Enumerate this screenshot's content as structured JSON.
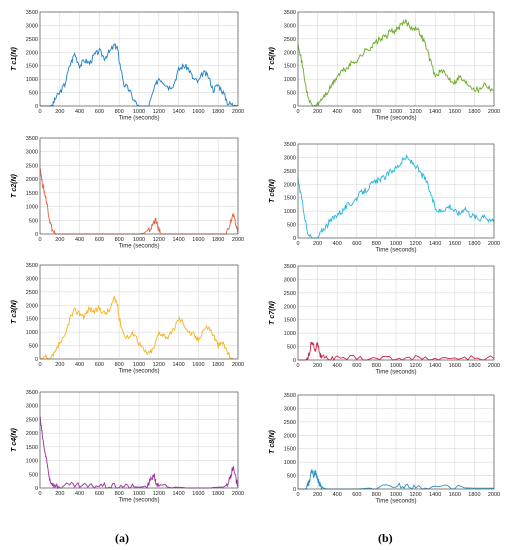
{
  "figure": {
    "panel_labels": [
      "(a)",
      "(b)"
    ]
  },
  "chart_data": [
    {
      "type": "line",
      "ylabel": "T c1(N)",
      "xlabel": "Time (seconds)",
      "xlim": [
        0,
        2000
      ],
      "ylim": [
        0,
        3500
      ],
      "xticks": [
        0,
        200,
        400,
        600,
        800,
        1000,
        1200,
        1400,
        1600,
        1800,
        2000
      ],
      "yticks": [
        0,
        500,
        1000,
        1500,
        2000,
        2500,
        3000,
        3500
      ],
      "grid": true,
      "color": "#1f7fc4",
      "series": [
        {
          "x": [
            0,
            50,
            100,
            130,
            150,
            200,
            250,
            300,
            350,
            400,
            450,
            500,
            550,
            600,
            650,
            700,
            750,
            780,
            800,
            850,
            900,
            950,
            1000,
            1050,
            1100,
            1150,
            1200,
            1250,
            1300,
            1350,
            1400,
            1450,
            1500,
            1550,
            1600,
            1650,
            1700,
            1750,
            1800,
            1850,
            1900,
            1950,
            2000
          ],
          "y": [
            0,
            0,
            0,
            50,
            250,
            500,
            800,
            1500,
            1950,
            1500,
            1700,
            1600,
            1900,
            2050,
            1800,
            2000,
            2250,
            2200,
            1700,
            800,
            600,
            200,
            0,
            0,
            0,
            600,
            1050,
            900,
            700,
            800,
            1350,
            1500,
            1400,
            1000,
            900,
            1250,
            1100,
            600,
            800,
            500,
            100,
            50,
            0
          ]
        }
      ]
    },
    {
      "type": "line",
      "ylabel": "T c2(N)",
      "xlabel": "Time (seconds)",
      "xlim": [
        0,
        2000
      ],
      "ylim": [
        0,
        3500
      ],
      "xticks": [
        0,
        200,
        400,
        600,
        800,
        1000,
        1200,
        1400,
        1600,
        1800,
        2000
      ],
      "yticks": [
        0,
        500,
        1000,
        1500,
        2000,
        2500,
        3000,
        3500
      ],
      "grid": true,
      "color": "#e8623a",
      "series": [
        {
          "x": [
            0,
            20,
            40,
            60,
            80,
            100,
            130,
            160,
            200,
            400,
            600,
            800,
            1000,
            1080,
            1120,
            1150,
            1170,
            1190,
            1220,
            1300,
            1500,
            1700,
            1880,
            1920,
            1950,
            1980,
            2000
          ],
          "y": [
            2500,
            1900,
            1600,
            1300,
            900,
            450,
            100,
            0,
            0,
            0,
            0,
            0,
            0,
            50,
            200,
            450,
            500,
            250,
            0,
            0,
            0,
            0,
            0,
            400,
            700,
            300,
            100
          ]
        }
      ]
    },
    {
      "type": "line",
      "ylabel": "T c3(N)",
      "xlabel": "Time (seconds)",
      "xlim": [
        0,
        2000
      ],
      "ylim": [
        0,
        3500
      ],
      "xticks": [
        0,
        200,
        400,
        600,
        800,
        1000,
        1200,
        1400,
        1600,
        1800,
        2000
      ],
      "yticks": [
        0,
        500,
        1000,
        1500,
        2000,
        2500,
        3000,
        3500
      ],
      "grid": true,
      "color": "#f5b322",
      "series": [
        {
          "x": [
            0,
            50,
            100,
            150,
            200,
            250,
            300,
            350,
            400,
            450,
            500,
            550,
            600,
            650,
            700,
            750,
            780,
            800,
            850,
            900,
            950,
            1000,
            1050,
            1100,
            1150,
            1200,
            1250,
            1300,
            1350,
            1400,
            1450,
            1500,
            1550,
            1600,
            1650,
            1700,
            1750,
            1800,
            1850,
            1900,
            1950
          ],
          "y": [
            0,
            50,
            0,
            200,
            600,
            800,
            1500,
            1800,
            1700,
            1600,
            1900,
            1750,
            1900,
            1700,
            1800,
            2250,
            2100,
            1500,
            900,
            800,
            1000,
            600,
            300,
            200,
            400,
            1000,
            900,
            800,
            1100,
            1500,
            1350,
            1000,
            900,
            700,
            1100,
            1200,
            900,
            500,
            600,
            200,
            0
          ]
        }
      ]
    },
    {
      "type": "line",
      "ylabel": "T c4(N)",
      "xlabel": "Time (seconds)",
      "xlim": [
        0,
        2000
      ],
      "ylim": [
        0,
        3500
      ],
      "xticks": [
        0,
        200,
        400,
        600,
        800,
        1000,
        1200,
        1400,
        1600,
        1800,
        2000
      ],
      "yticks": [
        0,
        500,
        1000,
        1500,
        2000,
        2500,
        3000,
        3500
      ],
      "grid": true,
      "color": "#9a2f9e",
      "series": [
        {
          "x": [
            0,
            20,
            40,
            60,
            80,
            100,
            140,
            200,
            300,
            400,
            500,
            600,
            700,
            800,
            900,
            1000,
            1080,
            1120,
            1150,
            1170,
            1200,
            1300,
            1500,
            1700,
            1880,
            1920,
            1950,
            1980,
            2000
          ],
          "y": [
            2600,
            2000,
            1500,
            1100,
            700,
            300,
            80,
            50,
            100,
            80,
            50,
            100,
            50,
            80,
            50,
            30,
            50,
            300,
            500,
            200,
            50,
            50,
            0,
            0,
            50,
            400,
            750,
            300,
            100
          ]
        }
      ]
    },
    {
      "type": "line",
      "ylabel": "T c5(N)",
      "xlabel": "Time (seconds)",
      "xlim": [
        0,
        2000
      ],
      "ylim": [
        0,
        3500
      ],
      "xticks": [
        0,
        200,
        400,
        600,
        800,
        1000,
        1200,
        1400,
        1600,
        1800,
        2000
      ],
      "yticks": [
        0,
        500,
        1000,
        1500,
        2000,
        2500,
        3000,
        3500
      ],
      "grid": true,
      "color": "#6aaa2a",
      "series": [
        {
          "x": [
            0,
            30,
            60,
            100,
            150,
            200,
            250,
            300,
            350,
            400,
            450,
            500,
            550,
            600,
            650,
            700,
            750,
            800,
            850,
            900,
            950,
            1000,
            1050,
            1100,
            1150,
            1200,
            1250,
            1300,
            1350,
            1400,
            1450,
            1500,
            1550,
            1600,
            1650,
            1700,
            1750,
            1800,
            1850,
            1900,
            1950,
            2000
          ],
          "y": [
            2400,
            1800,
            1200,
            300,
            0,
            50,
            300,
            500,
            800,
            1100,
            1300,
            1400,
            1600,
            1700,
            1900,
            2100,
            2200,
            2400,
            2500,
            2600,
            2800,
            2800,
            3000,
            3150,
            2950,
            2900,
            2700,
            2300,
            1700,
            1100,
            1300,
            1200,
            1000,
            900,
            1100,
            900,
            800,
            650,
            600,
            850,
            700,
            600
          ]
        }
      ]
    },
    {
      "type": "line",
      "ylabel": "T c6(N)",
      "xlabel": "Time (seconds)",
      "xlim": [
        0,
        2000
      ],
      "ylim": [
        0,
        3500
      ],
      "xticks": [
        0,
        200,
        400,
        600,
        800,
        1000,
        1200,
        1400,
        1600,
        1800,
        2000
      ],
      "yticks": [
        0,
        500,
        1000,
        1500,
        2000,
        2500,
        3000,
        3500
      ],
      "grid": true,
      "color": "#27b5de",
      "series": [
        {
          "x": [
            0,
            30,
            60,
            100,
            150,
            200,
            250,
            300,
            350,
            400,
            450,
            500,
            550,
            600,
            650,
            700,
            750,
            800,
            850,
            900,
            950,
            1000,
            1050,
            1100,
            1150,
            1200,
            1250,
            1300,
            1350,
            1400,
            1450,
            1500,
            1550,
            1600,
            1650,
            1700,
            1750,
            1800,
            1850,
            1900,
            1950,
            2000
          ],
          "y": [
            2200,
            1600,
            1000,
            100,
            0,
            0,
            300,
            500,
            700,
            900,
            1000,
            1200,
            1300,
            1500,
            1700,
            1800,
            2000,
            2100,
            2200,
            2300,
            2500,
            2600,
            2800,
            3000,
            2850,
            2700,
            2400,
            2200,
            1700,
            1100,
            1000,
            1100,
            1200,
            1000,
            900,
            1150,
            900,
            800,
            700,
            900,
            600,
            700
          ]
        }
      ]
    },
    {
      "type": "line",
      "ylabel": "T c7(N)",
      "xlabel": "Time (seconds)",
      "xlim": [
        0,
        2000
      ],
      "ylim": [
        0,
        3500
      ],
      "xticks": [
        0,
        200,
        400,
        600,
        800,
        1000,
        1200,
        1400,
        1600,
        1800,
        2000
      ],
      "yticks": [
        0,
        500,
        1000,
        1500,
        2000,
        2500,
        3000,
        3500
      ],
      "grid": true,
      "color": "#c8284a",
      "series": [
        {
          "x": [
            0,
            50,
            80,
            100,
            120,
            140,
            160,
            180,
            200,
            220,
            240,
            300,
            400,
            600,
            800,
            1000,
            1200,
            1400,
            1600,
            1800,
            2000
          ],
          "y": [
            0,
            0,
            0,
            100,
            250,
            750,
            500,
            300,
            700,
            250,
            100,
            50,
            50,
            80,
            50,
            60,
            80,
            50,
            50,
            60,
            50
          ]
        }
      ]
    },
    {
      "type": "line",
      "ylabel": "T c8(N)",
      "xlabel": "Time (seconds)",
      "xlim": [
        0,
        2000
      ],
      "ylim": [
        0,
        3500
      ],
      "xticks": [
        0,
        200,
        400,
        600,
        800,
        1000,
        1200,
        1400,
        1600,
        1800,
        2000
      ],
      "yticks": [
        0,
        500,
        1000,
        1500,
        2000,
        2500,
        3000,
        3500
      ],
      "grid": true,
      "color": "#2d8fc8",
      "series": [
        {
          "x": [
            0,
            50,
            80,
            100,
            120,
            140,
            160,
            180,
            200,
            220,
            240,
            300,
            400,
            600,
            800,
            1000,
            1100,
            1200,
            1400,
            1600,
            1800,
            2000
          ],
          "y": [
            0,
            0,
            0,
            150,
            300,
            700,
            500,
            650,
            400,
            200,
            50,
            0,
            0,
            0,
            50,
            100,
            120,
            80,
            50,
            50,
            30,
            30
          ]
        }
      ]
    }
  ]
}
